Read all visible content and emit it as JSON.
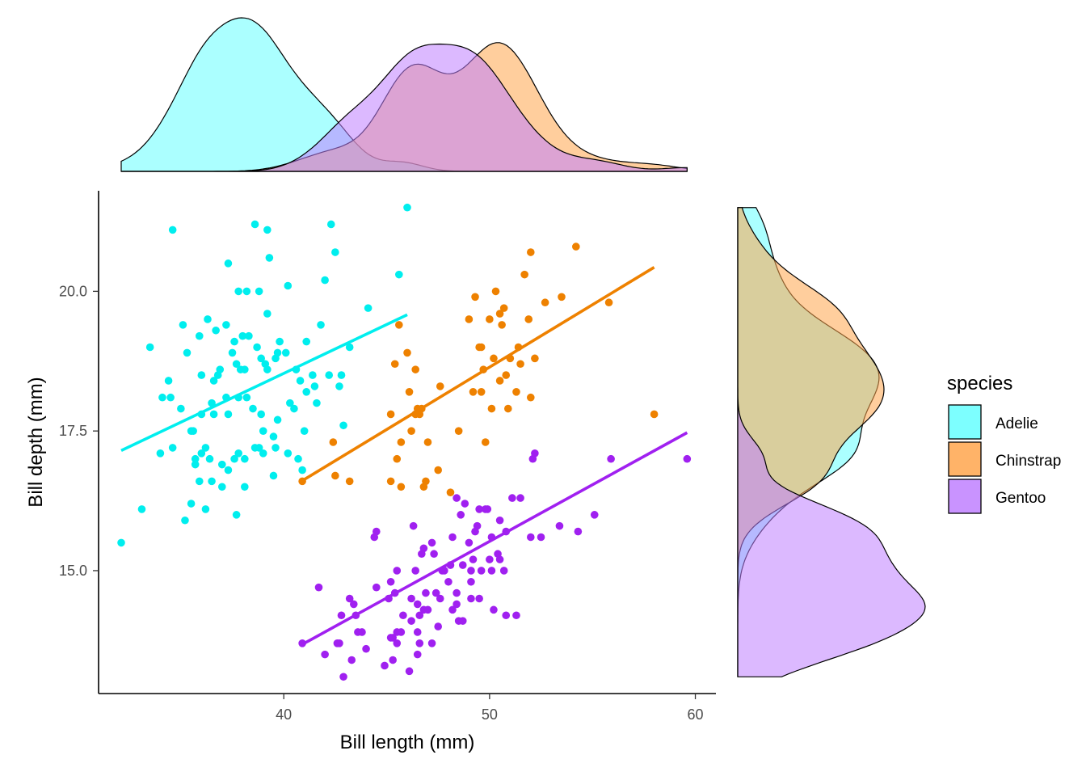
{
  "chart_data": {
    "type": "scatter",
    "xlabel": "Bill length (mm)",
    "ylabel": "Bill depth (mm)",
    "xlim": [
      31.0,
      61.0
    ],
    "ylim": [
      12.8,
      21.8
    ],
    "x_ticks": [
      40,
      50,
      60
    ],
    "x_tick_labels": [
      "40",
      "50",
      "60"
    ],
    "y_ticks": [
      15.0,
      17.5,
      20.0
    ],
    "y_tick_labels": [
      "15.0",
      "17.5",
      "20.0"
    ],
    "grid": false,
    "legend": {
      "title": "species",
      "position": "right"
    },
    "marginals": {
      "top": "density of bill length",
      "right": "density of bill depth"
    },
    "series": [
      {
        "name": "Adelie",
        "color": "#00EEEE",
        "fill": "#66FFFF",
        "fit": {
          "x": [
            32.1,
            46.0
          ],
          "y": [
            17.15,
            19.58
          ]
        },
        "points": [
          [
            32.1,
            15.5
          ],
          [
            33.1,
            16.1
          ],
          [
            33.5,
            19.0
          ],
          [
            34.0,
            17.1
          ],
          [
            34.1,
            18.1
          ],
          [
            34.4,
            18.4
          ],
          [
            34.5,
            18.1
          ],
          [
            34.6,
            21.1
          ],
          [
            34.6,
            17.2
          ],
          [
            35.0,
            17.9
          ],
          [
            35.1,
            19.4
          ],
          [
            35.2,
            15.9
          ],
          [
            35.3,
            18.9
          ],
          [
            35.5,
            16.2
          ],
          [
            35.5,
            17.5
          ],
          [
            35.6,
            17.5
          ],
          [
            35.7,
            16.9
          ],
          [
            35.7,
            17.0
          ],
          [
            35.9,
            16.6
          ],
          [
            35.9,
            19.2
          ],
          [
            36.0,
            17.1
          ],
          [
            36.0,
            17.8
          ],
          [
            36.0,
            18.5
          ],
          [
            36.2,
            16.1
          ],
          [
            36.2,
            17.2
          ],
          [
            36.3,
            19.5
          ],
          [
            36.4,
            17.0
          ],
          [
            36.5,
            16.6
          ],
          [
            36.5,
            18.0
          ],
          [
            36.6,
            17.8
          ],
          [
            36.6,
            18.4
          ],
          [
            36.7,
            19.3
          ],
          [
            36.8,
            18.5
          ],
          [
            36.9,
            18.6
          ],
          [
            37.0,
            16.9
          ],
          [
            37.0,
            16.5
          ],
          [
            37.2,
            18.1
          ],
          [
            37.2,
            19.4
          ],
          [
            37.3,
            16.8
          ],
          [
            37.3,
            17.8
          ],
          [
            37.3,
            20.5
          ],
          [
            37.5,
            18.9
          ],
          [
            37.6,
            17.0
          ],
          [
            37.6,
            19.1
          ],
          [
            37.7,
            16.0
          ],
          [
            37.7,
            18.7
          ],
          [
            37.8,
            17.1
          ],
          [
            37.8,
            18.1
          ],
          [
            37.8,
            20.0
          ],
          [
            37.9,
            18.6
          ],
          [
            38.1,
            17.0
          ],
          [
            38.1,
            18.6
          ],
          [
            38.1,
            16.5
          ],
          [
            38.2,
            18.1
          ],
          [
            38.2,
            20.0
          ],
          [
            38.3,
            19.2
          ],
          [
            38.5,
            17.9
          ],
          [
            38.6,
            17.2
          ],
          [
            38.6,
            21.2
          ],
          [
            38.7,
            19.0
          ],
          [
            38.8,
            17.2
          ],
          [
            38.8,
            20.0
          ],
          [
            38.9,
            17.8
          ],
          [
            38.9,
            18.8
          ],
          [
            39.0,
            17.1
          ],
          [
            39.0,
            17.5
          ],
          [
            39.1,
            18.7
          ],
          [
            39.2,
            18.6
          ],
          [
            39.2,
            21.1
          ],
          [
            39.3,
            20.6
          ],
          [
            39.5,
            16.7
          ],
          [
            39.5,
            17.4
          ],
          [
            39.6,
            17.2
          ],
          [
            39.6,
            18.8
          ],
          [
            39.7,
            17.7
          ],
          [
            39.7,
            18.9
          ],
          [
            39.8,
            19.1
          ],
          [
            40.1,
            18.9
          ],
          [
            40.2,
            17.1
          ],
          [
            40.2,
            20.1
          ],
          [
            40.3,
            18.0
          ],
          [
            40.5,
            17.9
          ],
          [
            40.6,
            18.6
          ],
          [
            40.7,
            17.0
          ],
          [
            40.8,
            18.4
          ],
          [
            40.9,
            16.8
          ],
          [
            41.0,
            17.5
          ],
          [
            41.1,
            18.2
          ],
          [
            41.1,
            19.1
          ],
          [
            41.4,
            18.5
          ],
          [
            41.5,
            18.3
          ],
          [
            41.6,
            18.0
          ],
          [
            41.8,
            19.4
          ],
          [
            42.0,
            20.2
          ],
          [
            42.2,
            18.5
          ],
          [
            42.3,
            21.2
          ],
          [
            42.5,
            20.7
          ],
          [
            42.7,
            18.3
          ],
          [
            42.8,
            18.5
          ],
          [
            42.9,
            17.6
          ],
          [
            43.2,
            19.0
          ],
          [
            44.1,
            19.7
          ],
          [
            45.6,
            20.3
          ],
          [
            46.0,
            21.5
          ],
          [
            39.2,
            19.6
          ],
          [
            38.0,
            19.2
          ]
        ]
      },
      {
        "name": "Chinstrap",
        "color": "#EE8100",
        "fill": "#FFA64D",
        "fit": {
          "x": [
            40.9,
            58.0
          ],
          "y": [
            16.61,
            20.43
          ]
        },
        "points": [
          [
            40.9,
            16.6
          ],
          [
            42.4,
            17.3
          ],
          [
            42.5,
            16.7
          ],
          [
            43.2,
            16.6
          ],
          [
            45.2,
            16.6
          ],
          [
            45.2,
            17.8
          ],
          [
            45.4,
            18.7
          ],
          [
            45.5,
            17.0
          ],
          [
            45.6,
            19.4
          ],
          [
            45.7,
            17.3
          ],
          [
            46.0,
            18.9
          ],
          [
            46.1,
            18.2
          ],
          [
            46.2,
            17.5
          ],
          [
            46.4,
            17.8
          ],
          [
            46.4,
            18.6
          ],
          [
            46.5,
            17.9
          ],
          [
            46.6,
            17.8
          ],
          [
            46.7,
            17.9
          ],
          [
            46.8,
            16.5
          ],
          [
            46.9,
            16.6
          ],
          [
            47.0,
            17.3
          ],
          [
            47.5,
            16.8
          ],
          [
            47.6,
            18.3
          ],
          [
            48.1,
            16.4
          ],
          [
            48.5,
            17.5
          ],
          [
            49.0,
            19.5
          ],
          [
            49.2,
            18.2
          ],
          [
            49.3,
            19.9
          ],
          [
            49.5,
            19.0
          ],
          [
            49.6,
            18.2
          ],
          [
            49.7,
            18.6
          ],
          [
            50.0,
            19.5
          ],
          [
            50.1,
            17.9
          ],
          [
            50.2,
            18.8
          ],
          [
            50.3,
            20.0
          ],
          [
            50.5,
            18.4
          ],
          [
            50.6,
            19.4
          ],
          [
            50.7,
            19.7
          ],
          [
            50.8,
            18.5
          ],
          [
            50.9,
            17.9
          ],
          [
            51.0,
            18.8
          ],
          [
            51.3,
            18.2
          ],
          [
            51.4,
            19.0
          ],
          [
            51.5,
            18.7
          ],
          [
            51.7,
            20.3
          ],
          [
            51.9,
            19.5
          ],
          [
            52.0,
            18.1
          ],
          [
            52.0,
            20.7
          ],
          [
            52.2,
            18.8
          ],
          [
            52.7,
            19.8
          ],
          [
            53.5,
            19.9
          ],
          [
            54.2,
            20.8
          ],
          [
            55.8,
            19.8
          ],
          [
            58.0,
            17.8
          ],
          [
            50.5,
            19.6
          ],
          [
            49.8,
            17.3
          ],
          [
            45.7,
            16.5
          ],
          [
            49.6,
            19.0
          ]
        ]
      },
      {
        "name": "Gentoo",
        "color": "#A020F0",
        "fill": "#C080FF",
        "fit": {
          "x": [
            40.9,
            59.6
          ],
          "y": [
            13.68,
            17.47
          ]
        },
        "points": [
          [
            40.9,
            13.7
          ],
          [
            41.7,
            14.7
          ],
          [
            42.0,
            13.5
          ],
          [
            42.6,
            13.7
          ],
          [
            42.7,
            13.7
          ],
          [
            42.8,
            14.2
          ],
          [
            42.9,
            13.1
          ],
          [
            43.2,
            14.5
          ],
          [
            43.3,
            13.4
          ],
          [
            43.4,
            14.4
          ],
          [
            43.5,
            14.2
          ],
          [
            43.6,
            13.9
          ],
          [
            43.8,
            13.9
          ],
          [
            44.0,
            13.6
          ],
          [
            44.4,
            15.6
          ],
          [
            44.5,
            14.7
          ],
          [
            44.5,
            15.7
          ],
          [
            44.9,
            13.3
          ],
          [
            45.1,
            14.5
          ],
          [
            45.2,
            13.8
          ],
          [
            45.2,
            14.8
          ],
          [
            45.3,
            13.8
          ],
          [
            45.4,
            14.6
          ],
          [
            45.5,
            13.7
          ],
          [
            45.5,
            13.9
          ],
          [
            45.5,
            15.0
          ],
          [
            45.7,
            13.9
          ],
          [
            45.8,
            14.2
          ],
          [
            46.1,
            13.2
          ],
          [
            46.2,
            14.1
          ],
          [
            46.2,
            14.5
          ],
          [
            46.3,
            15.8
          ],
          [
            46.4,
            15.0
          ],
          [
            46.5,
            13.5
          ],
          [
            46.5,
            14.4
          ],
          [
            46.6,
            14.2
          ],
          [
            46.7,
            15.3
          ],
          [
            46.8,
            14.3
          ],
          [
            46.8,
            15.4
          ],
          [
            46.9,
            14.6
          ],
          [
            47.2,
            13.7
          ],
          [
            47.2,
            15.5
          ],
          [
            47.3,
            15.3
          ],
          [
            47.4,
            14.6
          ],
          [
            47.5,
            14.0
          ],
          [
            47.6,
            14.5
          ],
          [
            47.7,
            15.0
          ],
          [
            47.8,
            15.0
          ],
          [
            48.1,
            15.1
          ],
          [
            48.2,
            14.3
          ],
          [
            48.2,
            15.6
          ],
          [
            48.4,
            14.4
          ],
          [
            48.4,
            16.3
          ],
          [
            48.5,
            14.1
          ],
          [
            48.6,
            16.0
          ],
          [
            48.7,
            14.1
          ],
          [
            48.7,
            15.1
          ],
          [
            48.8,
            16.2
          ],
          [
            49.0,
            15.5
          ],
          [
            49.1,
            14.5
          ],
          [
            49.1,
            15.0
          ],
          [
            49.2,
            15.2
          ],
          [
            49.3,
            15.7
          ],
          [
            49.4,
            15.8
          ],
          [
            49.5,
            16.1
          ],
          [
            49.6,
            15.0
          ],
          [
            49.8,
            16.1
          ],
          [
            49.9,
            16.1
          ],
          [
            50.0,
            15.2
          ],
          [
            50.1,
            15.0
          ],
          [
            50.2,
            14.3
          ],
          [
            50.4,
            15.3
          ],
          [
            50.5,
            15.2
          ],
          [
            50.5,
            15.9
          ],
          [
            50.7,
            15.0
          ],
          [
            50.8,
            15.7
          ],
          [
            51.1,
            16.3
          ],
          [
            51.3,
            14.2
          ],
          [
            51.5,
            16.3
          ],
          [
            52.1,
            17.0
          ],
          [
            52.2,
            17.1
          ],
          [
            52.5,
            15.6
          ],
          [
            53.4,
            15.8
          ],
          [
            54.3,
            15.7
          ],
          [
            55.1,
            16.0
          ],
          [
            55.9,
            17.0
          ],
          [
            59.6,
            17.0
          ],
          [
            48.0,
            14.8
          ],
          [
            49.5,
            14.5
          ],
          [
            47.0,
            14.3
          ],
          [
            50.8,
            14.2
          ],
          [
            49.1,
            14.8
          ],
          [
            48.4,
            14.6
          ],
          [
            45.3,
            13.4
          ],
          [
            46.5,
            13.9
          ],
          [
            52.0,
            15.6
          ],
          [
            46.6,
            13.7
          ],
          [
            50.1,
            15.6
          ]
        ]
      }
    ]
  }
}
